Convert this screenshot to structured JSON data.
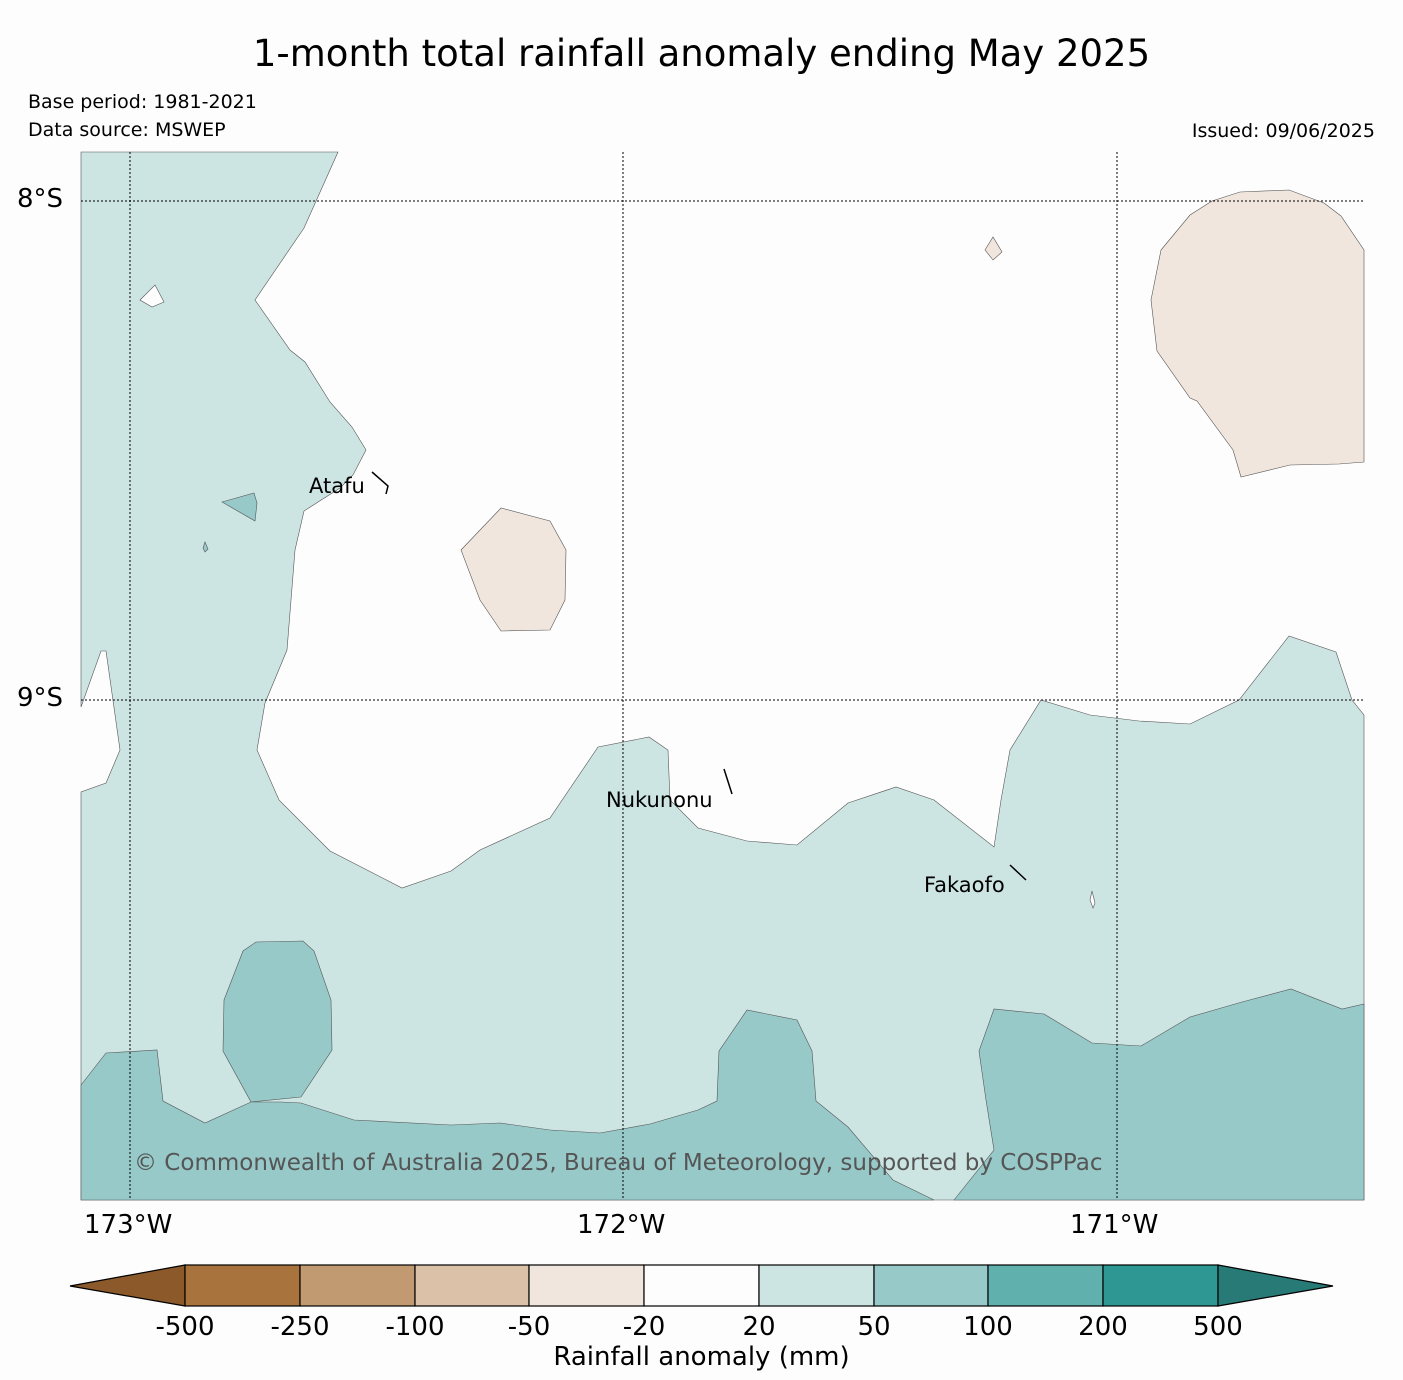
{
  "title": "1-month total rainfall anomaly ending May 2025",
  "base_period": "Base period: 1981-2021",
  "data_source": "Data source: MSWEP",
  "issued": "Issued: 09/06/2025",
  "copyright": "© Commonwealth of Australia 2025, Bureau of Meteorology, supported by COSPPac",
  "lat_labels": [
    "8°S",
    "9°S"
  ],
  "lon_labels": [
    "173°W",
    "172°W",
    "171°W"
  ],
  "places": [
    "Atafu",
    "Nukunonu",
    "Fakaofo"
  ],
  "colorbar": {
    "label": "Rainfall anomaly (mm)",
    "ticks": [
      "-500",
      "-250",
      "-100",
      "-50",
      "-20",
      "20",
      "50",
      "100",
      "200",
      "500"
    ],
    "colors": [
      "#8c5a2a",
      "#a8733c",
      "#c19a71",
      "#dcc1a9",
      "#f0e6dd",
      "#fdfdfd",
      "#cce5e3",
      "#98c9c9",
      "#60b0ae",
      "#2e9793",
      "#287a77"
    ]
  },
  "legend_colors": {
    "wet_20_50": "#cce5e3",
    "wet_50_100": "#98c9c9",
    "dry_20_50": "#f0e6dd",
    "neutral": "#fdfdfd"
  }
}
